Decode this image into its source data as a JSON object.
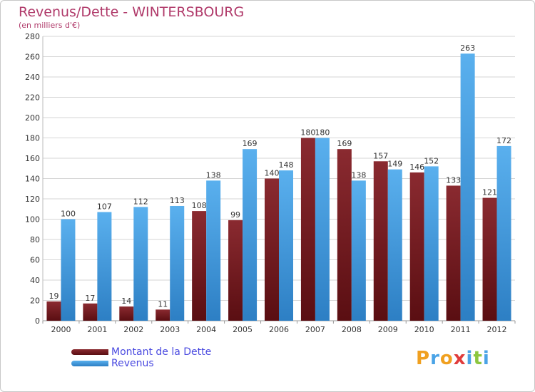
{
  "header": {
    "title": "Revenus/Dette - WINTERSBOURG",
    "subtitle": "(en milliers d'€)"
  },
  "chart_data": {
    "type": "bar",
    "categories": [
      "2000",
      "2001",
      "2002",
      "2003",
      "2004",
      "2005",
      "2006",
      "2007",
      "2008",
      "2009",
      "2010",
      "2011",
      "2012"
    ],
    "series": [
      {
        "name": "Montant de la Dette",
        "color": "#7a1f24",
        "values": [
          19,
          17,
          14,
          11,
          108,
          99,
          140,
          180,
          169,
          157,
          146,
          133,
          121
        ]
      },
      {
        "name": "Revenus",
        "color": "#4aa3e6",
        "values": [
          100,
          107,
          112,
          113,
          138,
          169,
          148,
          180,
          138,
          149,
          152,
          263,
          172
        ]
      }
    ],
    "ylim": [
      0,
      280
    ],
    "yticks": [
      0,
      20,
      40,
      60,
      80,
      100,
      120,
      140,
      160,
      180,
      200,
      220,
      240,
      260,
      280
    ],
    "grid": true,
    "legend_position": "bottom-left"
  },
  "legend": {
    "items": [
      {
        "label": "Montant de la Dette",
        "color": "#7a1f24"
      },
      {
        "label": "Revenus",
        "color": "#4aa3e6"
      }
    ]
  },
  "logo": {
    "letters": [
      {
        "ch": "P",
        "color": "#f0a020"
      },
      {
        "ch": "r",
        "color": "#4aa3e6"
      },
      {
        "ch": "o",
        "color": "#f0a020"
      },
      {
        "ch": "x",
        "color": "#e03c3c"
      },
      {
        "ch": "i",
        "color": "#4aa3e6"
      },
      {
        "ch": "t",
        "color": "#8cc63f"
      },
      {
        "ch": "i",
        "color": "#4aa3e6"
      }
    ]
  }
}
